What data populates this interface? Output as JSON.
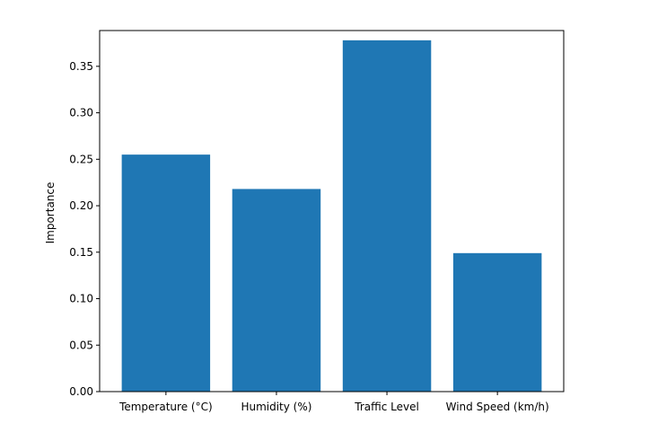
{
  "chart_data": {
    "type": "bar",
    "title": "",
    "xlabel": "",
    "ylabel": "Importance",
    "categories": [
      "Temperature (°C)",
      "Humidity (%)",
      "Traffic Level",
      "Wind Speed (km/h)"
    ],
    "values": [
      0.255,
      0.218,
      0.378,
      0.149
    ],
    "ylim": [
      0,
      0.3885
    ],
    "yticks": [
      0.0,
      0.05,
      0.1,
      0.15,
      0.2,
      0.25,
      0.3,
      0.35
    ],
    "ytick_labels": [
      "0.00",
      "0.05",
      "0.10",
      "0.15",
      "0.20",
      "0.25",
      "0.30",
      "0.35"
    ],
    "grid": false,
    "legend": "none",
    "bar_color": "#1f77b4"
  }
}
